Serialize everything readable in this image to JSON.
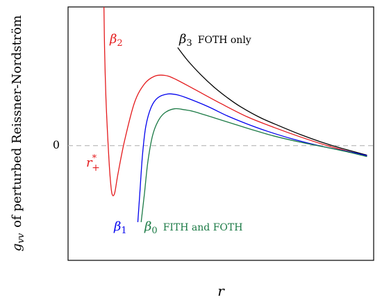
{
  "chart_data": {
    "type": "line",
    "title": "",
    "xlabel": "r",
    "ylabel": {
      "symbol": "g",
      "subscript": "vv",
      "text": "of perturbed Reissner-Nordström"
    },
    "xlim": [
      0.4,
      5.0
    ],
    "ylim": [
      -2.4,
      2.9
    ],
    "y_ticks": [
      {
        "value": 0,
        "label": "0"
      }
    ],
    "zero_line": {
      "style": "dashed",
      "color": "#bbbbbb"
    },
    "grid": false,
    "series": [
      {
        "name": "β2",
        "symbol": "β",
        "subscript": "2",
        "note": "",
        "color": "#e41a1c",
        "points": [
          [
            0.94,
            2.9
          ],
          [
            0.95,
            2.0
          ],
          [
            0.97,
            1.0
          ],
          [
            1.0,
            0.1
          ],
          [
            1.03,
            -0.6
          ],
          [
            1.06,
            -1.0
          ],
          [
            1.1,
            -1.0
          ],
          [
            1.15,
            -0.6
          ],
          [
            1.25,
            0.1
          ],
          [
            1.4,
            0.9
          ],
          [
            1.55,
            1.29
          ],
          [
            1.7,
            1.45
          ],
          [
            1.85,
            1.47
          ],
          [
            2.0,
            1.4
          ],
          [
            2.3,
            1.18
          ],
          [
            2.7,
            0.88
          ],
          [
            3.1,
            0.6
          ],
          [
            3.5,
            0.38
          ],
          [
            3.9,
            0.18
          ],
          [
            4.3,
            0.0
          ],
          [
            4.7,
            -0.15
          ],
          [
            4.9,
            -0.22
          ]
        ]
      },
      {
        "name": "β3",
        "symbol": "β",
        "subscript": "3",
        "note": "FOTH only",
        "color": "#000000",
        "points": [
          [
            2.05,
            2.05
          ],
          [
            2.2,
            1.78
          ],
          [
            2.4,
            1.48
          ],
          [
            2.6,
            1.22
          ],
          [
            2.8,
            1.0
          ],
          [
            3.0,
            0.81
          ],
          [
            3.3,
            0.58
          ],
          [
            3.6,
            0.4
          ],
          [
            3.9,
            0.23
          ],
          [
            4.2,
            0.08
          ],
          [
            4.5,
            -0.05
          ],
          [
            4.9,
            -0.2
          ]
        ]
      },
      {
        "name": "β1",
        "symbol": "β",
        "subscript": "1",
        "note": "",
        "color": "#0000ee",
        "points": [
          [
            1.45,
            -1.6
          ],
          [
            1.48,
            -1.0
          ],
          [
            1.52,
            -0.2
          ],
          [
            1.57,
            0.4
          ],
          [
            1.65,
            0.8
          ],
          [
            1.75,
            1.0
          ],
          [
            1.9,
            1.08
          ],
          [
            2.05,
            1.06
          ],
          [
            2.2,
            0.99
          ],
          [
            2.5,
            0.82
          ],
          [
            2.8,
            0.62
          ],
          [
            3.1,
            0.45
          ],
          [
            3.4,
            0.3
          ],
          [
            3.8,
            0.13
          ],
          [
            4.2,
            -0.01
          ],
          [
            4.6,
            -0.12
          ],
          [
            4.9,
            -0.21
          ]
        ]
      },
      {
        "name": "β0",
        "symbol": "β",
        "subscript": "0",
        "note": "FITH and FOTH",
        "color": "#1b7a45",
        "points": [
          [
            1.5,
            -1.6
          ],
          [
            1.55,
            -1.0
          ],
          [
            1.6,
            -0.35
          ],
          [
            1.67,
            0.2
          ],
          [
            1.75,
            0.5
          ],
          [
            1.85,
            0.68
          ],
          [
            2.0,
            0.77
          ],
          [
            2.15,
            0.75
          ],
          [
            2.3,
            0.71
          ],
          [
            2.6,
            0.58
          ],
          [
            2.9,
            0.45
          ],
          [
            3.2,
            0.32
          ],
          [
            3.5,
            0.2
          ],
          [
            3.9,
            0.07
          ],
          [
            4.3,
            -0.04
          ],
          [
            4.6,
            -0.13
          ],
          [
            4.9,
            -0.23
          ]
        ]
      }
    ],
    "annotations": [
      {
        "symbol": "r",
        "superscript": "*",
        "subscript": "+",
        "color": "#e41a1c"
      }
    ]
  }
}
